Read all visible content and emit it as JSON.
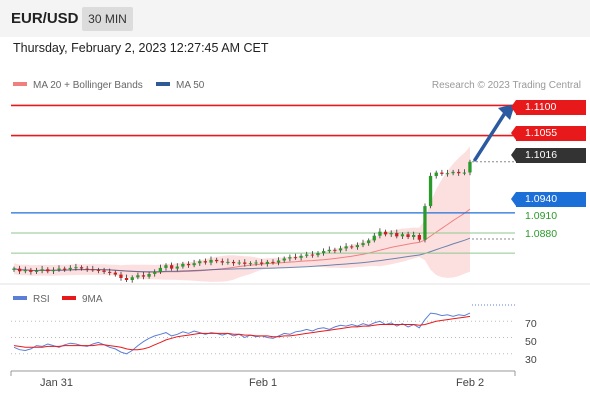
{
  "header": {
    "pair": "EUR/USD",
    "timeframe": "30 MIN",
    "datetime": "Thursday, February 2, 2023 12:27:45 AM CET"
  },
  "legend": {
    "ma20": "MA 20 + Bollinger Bands",
    "ma50": "MA 50",
    "credit": "Research © 2023 Trading Central"
  },
  "colors": {
    "ma20": "#f08080",
    "ma50": "#2f5a96",
    "resistance": "#e8191a",
    "support": "#1d6fd8",
    "levels_green": "#2a9a2a",
    "up_candle": "#2a9a2a",
    "down_candle": "#d11f1f",
    "rsi": "#5b7fd6",
    "rsi_ma": "#e8191a"
  },
  "levels": {
    "r2": "1.1100",
    "r1": "1.1055",
    "last": "1.1016",
    "s1": "1.0940",
    "g1": "1.0910",
    "g2": "1.0880"
  },
  "rsi_panel": {
    "rsi_label": "RSI",
    "ma_label": "9MA",
    "levels": [
      "70",
      "50",
      "30"
    ]
  },
  "xaxis": {
    "labels": [
      "Jan 31",
      "Feb 1",
      "Feb 2"
    ]
  },
  "chart_data": {
    "type": "candlestick",
    "y_range": [
      1.084,
      1.112
    ],
    "price_levels": [
      1.11,
      1.1055,
      1.1016,
      1.094,
      1.091,
      1.088
    ],
    "closes": [
      1.0857,
      1.0853,
      1.0855,
      1.0852,
      1.0854,
      1.0856,
      1.0853,
      1.0855,
      1.0857,
      1.0856,
      1.0858,
      1.0859,
      1.0857,
      1.0856,
      1.0855,
      1.0854,
      1.0852,
      1.0851,
      1.0848,
      1.0843,
      1.084,
      1.0844,
      1.0847,
      1.0845,
      1.0849,
      1.0852,
      1.0858,
      1.0862,
      1.0857,
      1.086,
      1.0864,
      1.0862,
      1.0865,
      1.0868,
      1.0866,
      1.087,
      1.0868,
      1.0866,
      1.0867,
      1.0865,
      1.0866,
      1.0864,
      1.0865,
      1.0866,
      1.0864,
      1.0867,
      1.0866,
      1.0869,
      1.0872,
      1.0874,
      1.0873,
      1.0876,
      1.0878,
      1.0877,
      1.088,
      1.0883,
      1.0885,
      1.0884,
      1.0887,
      1.089,
      1.0889,
      1.0892,
      1.0895,
      1.0899,
      1.0906,
      1.0912,
      1.0908,
      1.091,
      1.0905,
      1.0908,
      1.0904,
      1.0907,
      1.09,
      1.095,
      1.0995,
      1.1,
      1.0998,
      1.0999,
      1.1001,
      1.0999,
      1.1,
      1.1016
    ],
    "rsi": [
      38,
      35,
      34,
      36,
      40,
      39,
      42,
      40,
      38,
      41,
      43,
      42,
      40,
      39,
      42,
      44,
      41,
      38,
      36,
      32,
      30,
      34,
      40,
      45,
      49,
      52,
      54,
      56,
      52,
      54,
      57,
      55,
      58,
      56,
      54,
      56,
      55,
      53,
      55,
      52,
      54,
      50,
      53,
      51,
      52,
      50,
      49,
      52,
      55,
      54,
      57,
      58,
      60,
      58,
      61,
      62,
      60,
      63,
      65,
      64,
      66,
      64,
      67,
      65,
      68,
      70,
      66,
      68,
      64,
      67,
      63,
      66,
      62,
      72,
      80,
      79,
      77,
      78,
      76,
      78,
      77,
      80
    ],
    "rsi_ma": [
      40,
      39,
      38,
      38,
      38,
      38,
      39,
      39,
      39,
      40,
      40,
      40,
      40,
      40,
      40,
      41,
      41,
      40,
      39,
      38,
      36,
      35,
      35,
      36,
      38,
      41,
      44,
      47,
      49,
      51,
      52,
      53,
      54,
      55,
      55,
      55,
      55,
      55,
      55,
      54,
      54,
      53,
      53,
      52,
      52,
      52,
      51,
      51,
      52,
      52,
      53,
      54,
      55,
      56,
      57,
      58,
      59,
      60,
      61,
      62,
      63,
      63,
      64,
      64,
      65,
      66,
      66,
      66,
      66,
      66,
      66,
      66,
      65,
      66,
      68,
      70,
      71,
      72,
      73,
      74,
      75,
      76
    ]
  }
}
